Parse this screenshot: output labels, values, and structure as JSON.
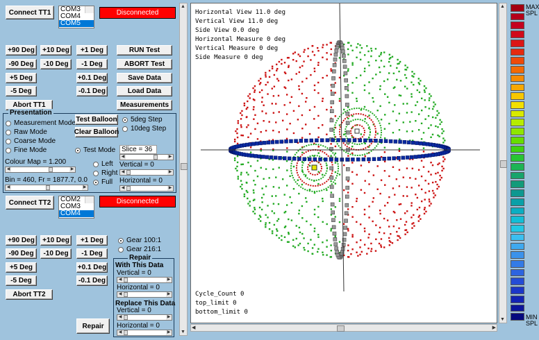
{
  "tt1": {
    "connect_label": "Connect TT1",
    "ports": [
      "COM3",
      "COM4",
      "COM5"
    ],
    "selected_port": "COM5",
    "status": "Disconnected",
    "buttons": {
      "p90": "+90 Deg",
      "p10": "+10 Deg",
      "p1": "+1 Deg",
      "m90": "-90 Deg",
      "m10": "-10 Deg",
      "m1": "-1 Deg",
      "p5": "+5 Deg",
      "p01": "+0.1 Deg",
      "m5": "-5 Deg",
      "m01": "-0.1 Deg",
      "abort": "Abort TT1"
    }
  },
  "actions": {
    "run": "RUN Test",
    "abort": "ABORT Test",
    "save": "Save Data",
    "load": "Load Data",
    "measurements": "Measurements"
  },
  "presentation": {
    "title": "Presentation",
    "modes": [
      "Measurement Mode",
      "Raw Mode",
      "Coarse Mode",
      "Fine Mode"
    ],
    "selected_mode": "",
    "test_balloon": "Test Balloon",
    "clear_balloon": "Clear Balloon",
    "steps": [
      "5deg Step",
      "10deg Step"
    ],
    "selected_step": "5deg Step",
    "test_mode": "Test Mode",
    "slice": "Slice = 36",
    "colour_map": "Colour Map = 1.200",
    "views": [
      "Left",
      "Right",
      "Full"
    ],
    "selected_view": "Full",
    "vertical": "Vertical = 0",
    "horizontal": "Horizontal = 0",
    "bin": "Bin = 460, Fr = 1877.7, 0.0"
  },
  "tt2": {
    "connect_label": "Connect TT2",
    "ports": [
      "COM2",
      "COM3",
      "COM4"
    ],
    "selected_port": "COM4",
    "status": "Disconnected",
    "buttons": {
      "p90": "+90 Deg",
      "p10": "+10 Deg",
      "p1": "+1 Deg",
      "m90": "-90 Deg",
      "m10": "-10 Deg",
      "m1": "-1 Deg",
      "p5": "+5 Deg",
      "p01": "+0.1 Deg",
      "m5": "-5 Deg",
      "m01": "-0.1 Deg",
      "abort": "Abort TT2"
    },
    "gears": [
      "Gear 100:1",
      "Gear 216:1"
    ],
    "selected_gear": "Gear 100:1"
  },
  "repair": {
    "title": "Repair",
    "with_label": "With This Data",
    "with_vertical": "Vertical = 0",
    "with_horizontal": "Horizontal = 0",
    "replace_label": "Replace This Data",
    "replace_vertical": "Vertical = 0",
    "replace_horizontal": "Horizontal = 0",
    "button": "Repair"
  },
  "plot": {
    "info": [
      "Horizontal View 11.0 deg",
      "Vertical View 11.0 deg",
      "Side View 0.0 deg",
      "Horizontal Measure 0 deg",
      "Vertical Measure 0 deg",
      "Side Measure 0 deg"
    ],
    "footer": [
      "Cycle_Count 0",
      "top_limit 0",
      "bottom_limit 0"
    ],
    "colors": {
      "red": "#cc1111",
      "green": "#22aa22",
      "blue": "#0a2aa0",
      "grey": "#777777"
    }
  },
  "colorbar": {
    "max_label": [
      "MAX",
      "SPL"
    ],
    "min_label": [
      "MIN",
      "SPL"
    ],
    "swatches": [
      "#a30012",
      "#b5001a",
      "#c4001f",
      "#d10a1a",
      "#dc1616",
      "#e52a10",
      "#ee4a0a",
      "#f26a06",
      "#f58b04",
      "#f7a800",
      "#f7c700",
      "#f2e000",
      "#d8ea00",
      "#b6ec00",
      "#8ee600",
      "#66dd00",
      "#3fd210",
      "#27c534",
      "#1cb455",
      "#17a46c",
      "#129b7a",
      "#0e9890",
      "#0aa0a8",
      "#0aaec2",
      "#12bed6",
      "#22c8e4",
      "#3bbff0",
      "#3fa9ef",
      "#3b92eb",
      "#347be6",
      "#2d64e0",
      "#244cd6",
      "#1b37c8",
      "#1223b4",
      "#0b159c",
      "#060a7e"
    ]
  }
}
